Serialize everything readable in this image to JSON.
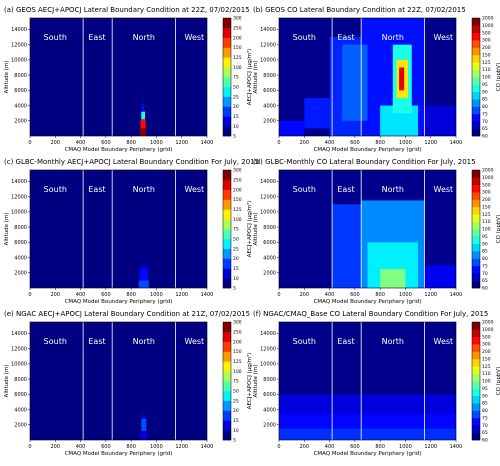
{
  "chart_data": [
    {
      "id": "a",
      "type": "heatmap",
      "panel_label": "(a)",
      "title": "GEOS AECJ+APOCJ Lateral Boundary Condition at 22Z, 07/02/2015",
      "xlabel": "CMAQ Model Boundary Periphery (grid)",
      "ylabel": "Altitude (m)",
      "colorbar_label": "AECJ+APOCJ (μg/m³)",
      "xlim": [
        0,
        1400
      ],
      "ylim": [
        0,
        15500
      ],
      "xticks": [
        0,
        200,
        400,
        600,
        800,
        1000,
        1200,
        1400
      ],
      "yticks": [
        2000,
        4000,
        6000,
        8000,
        10000,
        12000,
        14000
      ],
      "cb_ticks": [
        "5",
        "10",
        "15",
        "20",
        "25",
        "50",
        "75",
        "100",
        "125",
        "150",
        "200",
        "250",
        "300"
      ],
      "cb_vmax": 300,
      "regions": [
        {
          "name": "South",
          "x": 200
        },
        {
          "name": "East",
          "x": 530
        },
        {
          "name": "North",
          "x": 900
        },
        {
          "name": "West",
          "x": 1300
        }
      ],
      "dividers": [
        420,
        650,
        1150
      ],
      "background": 0,
      "blobs": [
        {
          "x": [
            870,
            920
          ],
          "y": [
            0,
            1000
          ],
          "v": 300
        },
        {
          "x": [
            875,
            915
          ],
          "y": [
            1000,
            2200
          ],
          "v": 260
        },
        {
          "x": [
            880,
            910
          ],
          "y": [
            2200,
            3200
          ],
          "v": 120
        },
        {
          "x": [
            885,
            905
          ],
          "y": [
            3200,
            4200
          ],
          "v": 40
        },
        {
          "x": [
            890,
            900
          ],
          "y": [
            4200,
            5500
          ],
          "v": 15
        }
      ]
    },
    {
      "id": "b",
      "type": "heatmap",
      "panel_label": "(b)",
      "title": "GEOS CO Lateral Boundary Condition at 22Z, 07/02/2015",
      "xlabel": "CMAQ Model Boundary Periphery (grid)",
      "ylabel": "Altitude (m)",
      "colorbar_label": "CO (ppbV)",
      "xlim": [
        0,
        1400
      ],
      "ylim": [
        0,
        15500
      ],
      "xticks": [
        0,
        200,
        400,
        600,
        800,
        1000,
        1200,
        1400
      ],
      "yticks": [
        2000,
        4000,
        6000,
        8000,
        10000,
        12000,
        14000
      ],
      "cb_ticks": [
        "60",
        "65",
        "70",
        "75",
        "80",
        "85",
        "90",
        "95",
        "100",
        "110",
        "125",
        "150",
        "200",
        "300",
        "500",
        "1000",
        "2000"
      ],
      "cb_vmax": 2000,
      "regions": [
        {
          "name": "South",
          "x": 200
        },
        {
          "name": "East",
          "x": 530
        },
        {
          "name": "North",
          "x": 900
        },
        {
          "name": "West",
          "x": 1300
        }
      ],
      "dividers": [
        420,
        650,
        1150
      ],
      "background": 500,
      "blobs": [
        {
          "x": [
            0,
            200
          ],
          "y": [
            0,
            2000
          ],
          "v": 1300
        },
        {
          "x": [
            200,
            400
          ],
          "y": [
            1000,
            5000
          ],
          "v": 1500
        },
        {
          "x": [
            400,
            650
          ],
          "y": [
            0,
            13000
          ],
          "v": 1600
        },
        {
          "x": [
            650,
            1150
          ],
          "y": [
            0,
            15500
          ],
          "v": 1400
        },
        {
          "x": [
            500,
            700
          ],
          "y": [
            2000,
            12000
          ],
          "v": 2200
        },
        {
          "x": [
            800,
            1100
          ],
          "y": [
            0,
            4000
          ],
          "v": 3500
        },
        {
          "x": [
            900,
            1050
          ],
          "y": [
            3000,
            12000
          ],
          "v": 4000
        },
        {
          "x": [
            930,
            1020
          ],
          "y": [
            5000,
            10000
          ],
          "v": 6500
        },
        {
          "x": [
            950,
            990
          ],
          "y": [
            6000,
            9000
          ],
          "v": 9000
        },
        {
          "x": [
            1150,
            1400
          ],
          "y": [
            0,
            4000
          ],
          "v": 900
        }
      ]
    },
    {
      "id": "c",
      "type": "heatmap",
      "panel_label": "(c)",
      "title": "GLBC-Monthly AECJ+APOCJ Lateral Boundary Condition For July, 2015",
      "xlabel": "CMAQ Model Boundary Periphery (grid)",
      "ylabel": "Altitude (m)",
      "colorbar_label": "AECJ+APOCJ (μg/m³)",
      "xlim": [
        0,
        1400
      ],
      "ylim": [
        0,
        15500
      ],
      "xticks": [
        0,
        200,
        400,
        600,
        800,
        1000,
        1200,
        1400
      ],
      "yticks": [
        2000,
        4000,
        6000,
        8000,
        10000,
        12000,
        14000
      ],
      "cb_ticks": [
        "5",
        "10",
        "15",
        "20",
        "25",
        "50",
        "75",
        "100",
        "125",
        "150",
        "200",
        "250",
        "300"
      ],
      "cb_vmax": 300,
      "regions": [
        {
          "name": "South",
          "x": 200
        },
        {
          "name": "East",
          "x": 530
        },
        {
          "name": "North",
          "x": 900
        },
        {
          "name": "West",
          "x": 1300
        }
      ],
      "dividers": [
        420,
        650,
        1150
      ],
      "background": 0,
      "blobs": [
        {
          "x": [
            860,
            940
          ],
          "y": [
            0,
            1000
          ],
          "v": 60
        },
        {
          "x": [
            865,
            935
          ],
          "y": [
            1000,
            2500
          ],
          "v": 40
        },
        {
          "x": [
            870,
            930
          ],
          "y": [
            2500,
            3200
          ],
          "v": 18
        }
      ]
    },
    {
      "id": "d",
      "type": "heatmap",
      "panel_label": "(d)",
      "title": "GLBC-Monthly CO Lateral Boundary Condition For July, 2015",
      "xlabel": "CMAQ Model Boundary Periphery (grid)",
      "ylabel": "Altitude (m)",
      "colorbar_label": "CO (ppbV)",
      "xlim": [
        0,
        1400
      ],
      "ylim": [
        0,
        15500
      ],
      "xticks": [
        0,
        200,
        400,
        600,
        800,
        1000,
        1200,
        1400
      ],
      "yticks": [
        2000,
        4000,
        6000,
        8000,
        10000,
        12000,
        14000
      ],
      "cb_ticks": [
        "60",
        "65",
        "70",
        "75",
        "80",
        "85",
        "90",
        "95",
        "100",
        "110",
        "125",
        "150",
        "200",
        "300",
        "500",
        "1000",
        "2000"
      ],
      "cb_vmax": 2000,
      "regions": [
        {
          "name": "South",
          "x": 200
        },
        {
          "name": "East",
          "x": 530
        },
        {
          "name": "North",
          "x": 900
        },
        {
          "name": "West",
          "x": 1300
        }
      ],
      "dividers": [
        420,
        650,
        1150
      ],
      "background": 500,
      "blobs": [
        {
          "x": [
            420,
            650
          ],
          "y": [
            0,
            11000
          ],
          "v": 1800
        },
        {
          "x": [
            650,
            1150
          ],
          "y": [
            0,
            11500
          ],
          "v": 2600
        },
        {
          "x": [
            700,
            1100
          ],
          "y": [
            0,
            6000
          ],
          "v": 3600
        },
        {
          "x": [
            800,
            1000
          ],
          "y": [
            0,
            2500
          ],
          "v": 5000
        },
        {
          "x": [
            1150,
            1400
          ],
          "y": [
            0,
            3000
          ],
          "v": 1100
        }
      ]
    },
    {
      "id": "e",
      "type": "heatmap",
      "panel_label": "(e)",
      "title": "NGAC AECJ+APOCJ Lateral Boundary Condition at 21Z, 07/02/2015",
      "xlabel": "CMAQ Model Boundary Periphery (grid)",
      "ylabel": "Altitude (m)",
      "colorbar_label": "AECJ+APOCJ (μg/m³)",
      "xlim": [
        0,
        1400
      ],
      "ylim": [
        0,
        15500
      ],
      "xticks": [
        0,
        200,
        400,
        600,
        800,
        1000,
        1200,
        1400
      ],
      "yticks": [
        2000,
        4000,
        6000,
        8000,
        10000,
        12000,
        14000
      ],
      "cb_ticks": [
        "5",
        "10",
        "15",
        "20",
        "25",
        "50",
        "75",
        "100",
        "125",
        "150",
        "200",
        "250",
        "300"
      ],
      "cb_vmax": 300,
      "regions": [
        {
          "name": "South",
          "x": 200
        },
        {
          "name": "East",
          "x": 530
        },
        {
          "name": "North",
          "x": 900
        },
        {
          "name": "West",
          "x": 1300
        }
      ],
      "dividers": [
        420,
        650,
        1150
      ],
      "background": 0,
      "blobs": [
        {
          "x": [
            875,
            925
          ],
          "y": [
            0,
            1200
          ],
          "v": 30
        },
        {
          "x": [
            880,
            920
          ],
          "y": [
            1200,
            2800
          ],
          "v": 60
        },
        {
          "x": [
            885,
            915
          ],
          "y": [
            2800,
            3500
          ],
          "v": 20
        }
      ]
    },
    {
      "id": "f",
      "type": "heatmap",
      "panel_label": "(f)",
      "title": "NGAC/CMAQ_Base CO Lateral Boundary Condition For July, 2015",
      "xlabel": "CMAQ Model Boundary Periphery (grid)",
      "ylabel": "Altitude (m)",
      "colorbar_label": "CO (ppbV)",
      "xlim": [
        0,
        1400
      ],
      "ylim": [
        0,
        15500
      ],
      "xticks": [
        0,
        200,
        400,
        600,
        800,
        1000,
        1200,
        1400
      ],
      "yticks": [
        2000,
        4000,
        6000,
        8000,
        10000,
        12000,
        14000
      ],
      "cb_ticks": [
        "60",
        "65",
        "70",
        "75",
        "80",
        "85",
        "90",
        "95",
        "100",
        "110",
        "125",
        "150",
        "200",
        "300",
        "500",
        "1000",
        "2000"
      ],
      "cb_vmax": 2000,
      "regions": [
        {
          "name": "South",
          "x": 200
        },
        {
          "name": "East",
          "x": 530
        },
        {
          "name": "North",
          "x": 900
        },
        {
          "name": "West",
          "x": 1300
        }
      ],
      "dividers": [
        420,
        650,
        1150
      ],
      "background": 450,
      "blobs": [
        {
          "x": [
            0,
            1400
          ],
          "y": [
            3500,
            6000
          ],
          "v": 900
        },
        {
          "x": [
            0,
            1400
          ],
          "y": [
            1500,
            3500
          ],
          "v": 1300
        },
        {
          "x": [
            0,
            1400
          ],
          "y": [
            0,
            1500
          ],
          "v": 1700
        }
      ]
    }
  ]
}
